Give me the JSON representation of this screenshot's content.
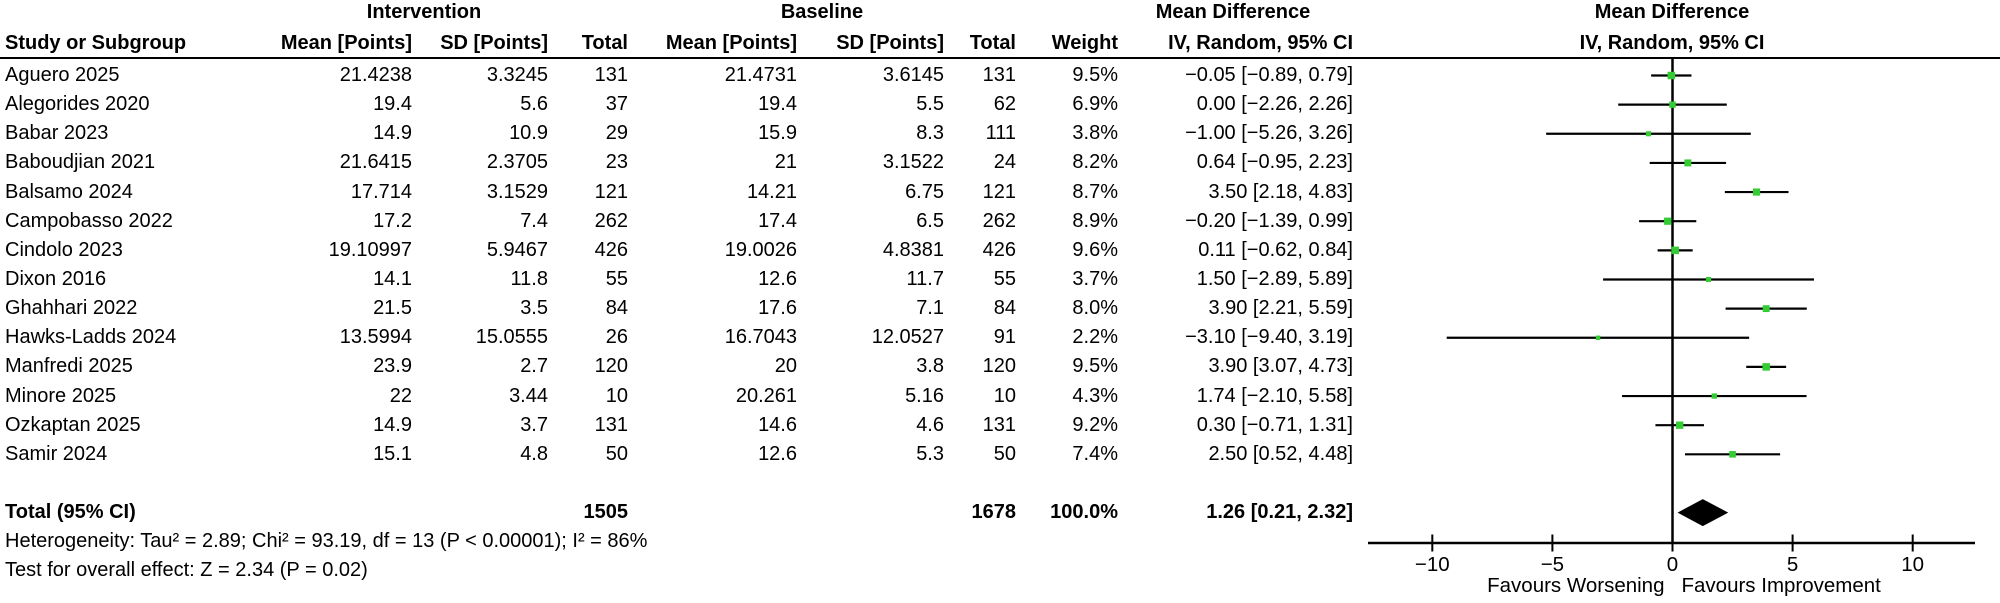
{
  "headers": {
    "group_intervention": "Intervention",
    "group_baseline": "Baseline",
    "group_md_text": "Mean Difference",
    "group_md_plot": "Mean Difference",
    "study": "Study or Subgroup",
    "mean_points": "Mean [Points]",
    "sd_points": "SD [Points]",
    "total": "Total",
    "weight": "Weight",
    "iv_random_text": "IV, Random, 95% CI",
    "iv_random_plot": "IV, Random, 95% CI"
  },
  "studies": [
    {
      "name": "Aguero 2025",
      "i_mean": "21.4238",
      "i_sd": "3.3245",
      "i_total": "131",
      "b_mean": "21.4731",
      "b_sd": "3.6145",
      "b_total": "131",
      "weight": "9.5%",
      "ci": "−0.05 [−0.89, 0.79]"
    },
    {
      "name": "Alegorides 2020",
      "i_mean": "19.4",
      "i_sd": "5.6",
      "i_total": "37",
      "b_mean": "19.4",
      "b_sd": "5.5",
      "b_total": "62",
      "weight": "6.9%",
      "ci": "0.00 [−2.26, 2.26]"
    },
    {
      "name": "Babar 2023",
      "i_mean": "14.9",
      "i_sd": "10.9",
      "i_total": "29",
      "b_mean": "15.9",
      "b_sd": "8.3",
      "b_total": "111",
      "weight": "3.8%",
      "ci": "−1.00 [−5.26, 3.26]"
    },
    {
      "name": "Baboudjian 2021",
      "i_mean": "21.6415",
      "i_sd": "2.3705",
      "i_total": "23",
      "b_mean": "21",
      "b_sd": "3.1522",
      "b_total": "24",
      "weight": "8.2%",
      "ci": "0.64 [−0.95, 2.23]"
    },
    {
      "name": "Balsamo 2024",
      "i_mean": "17.714",
      "i_sd": "3.1529",
      "i_total": "121",
      "b_mean": "14.21",
      "b_sd": "6.75",
      "b_total": "121",
      "weight": "8.7%",
      "ci": "3.50 [2.18, 4.83]"
    },
    {
      "name": "Campobasso 2022",
      "i_mean": "17.2",
      "i_sd": "7.4",
      "i_total": "262",
      "b_mean": "17.4",
      "b_sd": "6.5",
      "b_total": "262",
      "weight": "8.9%",
      "ci": "−0.20 [−1.39, 0.99]"
    },
    {
      "name": "Cindolo 2023",
      "i_mean": "19.10997",
      "i_sd": "5.9467",
      "i_total": "426",
      "b_mean": "19.0026",
      "b_sd": "4.8381",
      "b_total": "426",
      "weight": "9.6%",
      "ci": "0.11 [−0.62, 0.84]"
    },
    {
      "name": "Dixon 2016",
      "i_mean": "14.1",
      "i_sd": "11.8",
      "i_total": "55",
      "b_mean": "12.6",
      "b_sd": "11.7",
      "b_total": "55",
      "weight": "3.7%",
      "ci": "1.50 [−2.89, 5.89]"
    },
    {
      "name": "Ghahhari 2022",
      "i_mean": "21.5",
      "i_sd": "3.5",
      "i_total": "84",
      "b_mean": "17.6",
      "b_sd": "7.1",
      "b_total": "84",
      "weight": "8.0%",
      "ci": "3.90 [2.21, 5.59]"
    },
    {
      "name": "Hawks-Ladds 2024",
      "i_mean": "13.5994",
      "i_sd": "15.0555",
      "i_total": "26",
      "b_mean": "16.7043",
      "b_sd": "12.0527",
      "b_total": "91",
      "weight": "2.2%",
      "ci": "−3.10 [−9.40, 3.19]"
    },
    {
      "name": "Manfredi 2025",
      "i_mean": "23.9",
      "i_sd": "2.7",
      "i_total": "120",
      "b_mean": "20",
      "b_sd": "3.8",
      "b_total": "120",
      "weight": "9.5%",
      "ci": "3.90 [3.07, 4.73]"
    },
    {
      "name": "Minore 2025",
      "i_mean": "22",
      "i_sd": "3.44",
      "i_total": "10",
      "b_mean": "20.261",
      "b_sd": "5.16",
      "b_total": "10",
      "weight": "4.3%",
      "ci": "1.74 [−2.10, 5.58]"
    },
    {
      "name": "Ozkaptan 2025",
      "i_mean": "14.9",
      "i_sd": "3.7",
      "i_total": "131",
      "b_mean": "14.6",
      "b_sd": "4.6",
      "b_total": "131",
      "weight": "9.2%",
      "ci": "0.30 [−0.71, 1.31]"
    },
    {
      "name": "Samir 2024",
      "i_mean": "15.1",
      "i_sd": "4.8",
      "i_total": "50",
      "b_mean": "12.6",
      "b_sd": "5.3",
      "b_total": "50",
      "weight": "7.4%",
      "ci": "2.50 [0.52, 4.48]"
    }
  ],
  "total_row": {
    "label": "Total (95% CI)",
    "i_total": "1505",
    "b_total": "1678",
    "weight": "100.0%",
    "ci": "1.26 [0.21, 2.32]"
  },
  "footnotes": {
    "heterogeneity": "Heterogeneity: Tau² = 2.89; Chi² = 93.19, df = 13 (P < 0.00001); I² = 86%",
    "overall_effect": "Test for overall effect: Z = 2.34 (P = 0.02)"
  },
  "chart_data": {
    "type": "scatter",
    "subtype": "forest-plot",
    "effect_measure": "Mean Difference, IV, Random, 95% CI",
    "studies": [
      {
        "name": "Aguero 2025",
        "md": -0.05,
        "lo": -0.89,
        "hi": 0.79,
        "weight_pct": 9.5
      },
      {
        "name": "Alegorides 2020",
        "md": 0.0,
        "lo": -2.26,
        "hi": 2.26,
        "weight_pct": 6.9
      },
      {
        "name": "Babar 2023",
        "md": -1.0,
        "lo": -5.26,
        "hi": 3.26,
        "weight_pct": 3.8
      },
      {
        "name": "Baboudjian 2021",
        "md": 0.64,
        "lo": -0.95,
        "hi": 2.23,
        "weight_pct": 8.2
      },
      {
        "name": "Balsamo 2024",
        "md": 3.5,
        "lo": 2.18,
        "hi": 4.83,
        "weight_pct": 8.7
      },
      {
        "name": "Campobasso 2022",
        "md": -0.2,
        "lo": -1.39,
        "hi": 0.99,
        "weight_pct": 8.9
      },
      {
        "name": "Cindolo 2023",
        "md": 0.11,
        "lo": -0.62,
        "hi": 0.84,
        "weight_pct": 9.6
      },
      {
        "name": "Dixon 2016",
        "md": 1.5,
        "lo": -2.89,
        "hi": 5.89,
        "weight_pct": 3.7
      },
      {
        "name": "Ghahhari 2022",
        "md": 3.9,
        "lo": 2.21,
        "hi": 5.59,
        "weight_pct": 8.0
      },
      {
        "name": "Hawks-Ladds 2024",
        "md": -3.1,
        "lo": -9.4,
        "hi": 3.19,
        "weight_pct": 2.2
      },
      {
        "name": "Manfredi 2025",
        "md": 3.9,
        "lo": 3.07,
        "hi": 4.73,
        "weight_pct": 9.5
      },
      {
        "name": "Minore 2025",
        "md": 1.74,
        "lo": -2.1,
        "hi": 5.58,
        "weight_pct": 4.3
      },
      {
        "name": "Ozkaptan 2025",
        "md": 0.3,
        "lo": -0.71,
        "hi": 1.31,
        "weight_pct": 9.2
      },
      {
        "name": "Samir 2024",
        "md": 2.5,
        "lo": 0.52,
        "hi": 4.48,
        "weight_pct": 7.4
      }
    ],
    "total": {
      "name": "Total (95% CI)",
      "md": 1.26,
      "lo": 0.21,
      "hi": 2.32,
      "weight_pct": 100.0
    },
    "xlim": [
      -12.7,
      12.6
    ],
    "x_ticks": [
      -10,
      -5,
      0,
      5,
      10
    ],
    "x_axis_labels": {
      "left": "Favours Worsening",
      "right": "Favours Improvement"
    },
    "grid": false,
    "marker_color": "#33cc33",
    "line_color": "#000000"
  }
}
